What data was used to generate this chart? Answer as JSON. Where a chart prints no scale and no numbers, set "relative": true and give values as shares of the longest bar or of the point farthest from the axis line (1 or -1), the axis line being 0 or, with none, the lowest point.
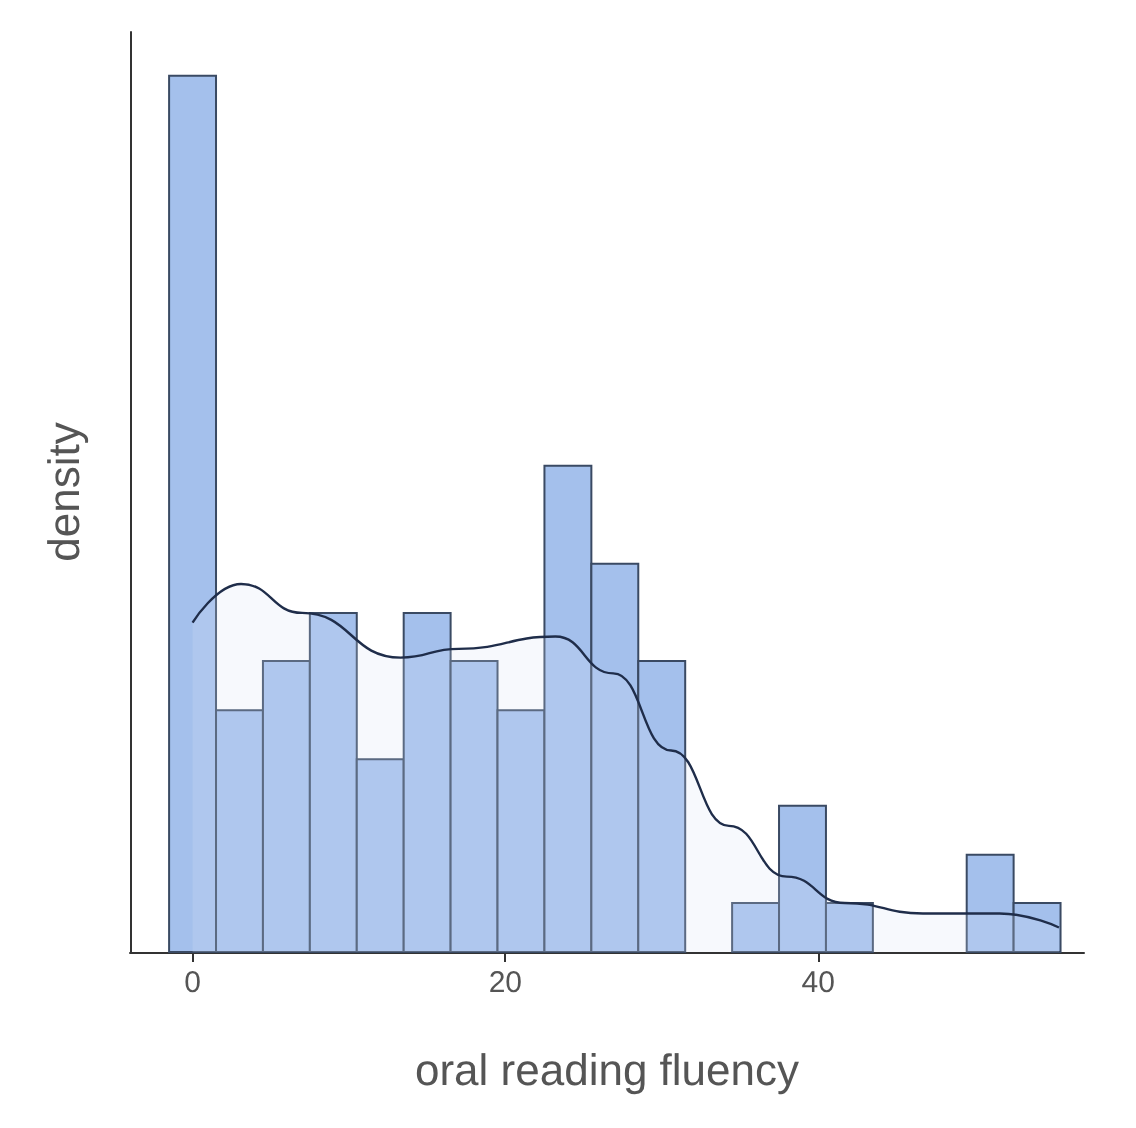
{
  "chart_data": {
    "type": "histogram",
    "relative": true,
    "xlabel": "oral reading fluency",
    "ylabel": "density",
    "bins": [
      -1.5,
      1.5,
      4.5,
      7.5,
      10.5,
      13.5,
      16.5,
      19.5,
      22.5,
      25.5,
      28.5,
      31.5,
      34.5,
      37.5,
      40.5,
      43.5,
      46.5,
      49.5,
      52.5,
      55.5
    ],
    "values": [
      1,
      0.276,
      0.332,
      0.387,
      0.22,
      0.387,
      0.332,
      0.276,
      0.555,
      0.443,
      0.332,
      0,
      0.056,
      0.167,
      0.056,
      0,
      0,
      0.111,
      0.056
    ],
    "color": "#a4c0ec",
    "xlim": [
      -4,
      57
    ],
    "xticks": [
      0,
      20,
      40
    ],
    "grid": false,
    "series": [
      {
        "type": "area",
        "color": "#1f2d4a",
        "x": [
          0,
          3.1,
          7,
          13.3,
          17,
          23.2,
          26.9,
          30.6,
          34.3,
          38,
          41.7,
          46.7,
          51.6,
          55.4
        ],
        "values": [
          0.376,
          0.42,
          0.387,
          0.336,
          0.346,
          0.36,
          0.318,
          0.23,
          0.144,
          0.086,
          0.056,
          0.044,
          0.044,
          0.028
        ]
      }
    ]
  }
}
